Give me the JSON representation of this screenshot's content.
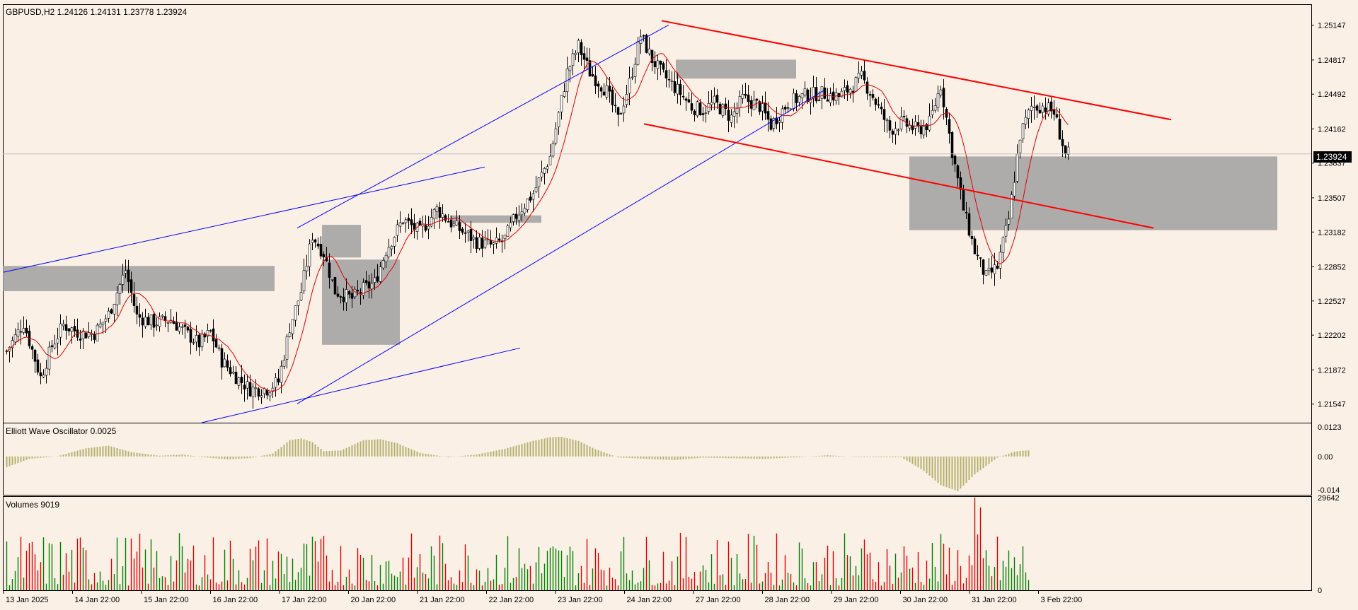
{
  "chart_data": [
    {
      "type": "candlestick",
      "title": "GBPUSD,H2  1.24126 1.24131 1.23778 1.23924",
      "symbol": "GBPUSD",
      "timeframe": "H2",
      "last_bar": {
        "open": 1.24126,
        "high": 1.24131,
        "low": 1.23778,
        "close": 1.23924
      },
      "current_price_label": "1.23924",
      "ylim": [
        1.2137,
        1.2534
      ],
      "y_ticks": [
        "1.25147",
        "1.24817",
        "1.24492",
        "1.24162",
        "1.23837",
        "1.23507",
        "1.23182",
        "1.22852",
        "1.22527",
        "1.22202",
        "1.21872",
        "1.21547"
      ],
      "x_ticks": [
        "13 Jan 2025",
        "14 Jan 22:00",
        "15 Jan 22:00",
        "16 Jan 22:00",
        "17 Jan 22:00",
        "20 Jan 22:00",
        "21 Jan 22:00",
        "22 Jan 22:00",
        "23 Jan 22:00",
        "24 Jan 22:00",
        "27 Jan 22:00",
        "28 Jan 22:00",
        "29 Jan 22:00",
        "30 Jan 22:00",
        "31 Jan 22:00",
        "3 Feb 22:00"
      ],
      "close_path": [
        [
          0,
          1.2205
        ],
        [
          6,
          1.2232
        ],
        [
          12,
          1.218
        ],
        [
          16,
          1.221
        ],
        [
          20,
          1.223
        ],
        [
          26,
          1.2222
        ],
        [
          31,
          1.2222
        ],
        [
          36,
          1.224
        ],
        [
          42,
          1.2282
        ],
        [
          46,
          1.2238
        ],
        [
          52,
          1.2232
        ],
        [
          58,
          1.2235
        ],
        [
          62,
          1.2225
        ],
        [
          68,
          1.2212
        ],
        [
          72,
          1.2223
        ],
        [
          76,
          1.2196
        ],
        [
          82,
          1.2178
        ],
        [
          86,
          1.2169
        ],
        [
          92,
          1.2169
        ],
        [
          96,
          1.2176
        ],
        [
          100,
          1.2228
        ],
        [
          104,
          1.2262
        ],
        [
          108,
          1.2315
        ],
        [
          112,
          1.2298
        ],
        [
          116,
          1.2262
        ],
        [
          122,
          1.2255
        ],
        [
          126,
          1.2264
        ],
        [
          130,
          1.227
        ],
        [
          134,
          1.2301
        ],
        [
          140,
          1.233
        ],
        [
          146,
          1.2318
        ],
        [
          152,
          1.234
        ],
        [
          158,
          1.2324
        ],
        [
          162,
          1.2317
        ],
        [
          166,
          1.2309
        ],
        [
          172,
          1.2305
        ],
        [
          176,
          1.2312
        ],
        [
          180,
          1.2334
        ],
        [
          186,
          1.2355
        ],
        [
          192,
          1.239
        ],
        [
          198,
          1.247
        ],
        [
          202,
          1.2495
        ],
        [
          206,
          1.247
        ],
        [
          212,
          1.2452
        ],
        [
          216,
          1.2425
        ],
        [
          220,
          1.246
        ],
        [
          224,
          1.2505
        ],
        [
          228,
          1.2482
        ],
        [
          232,
          1.2467
        ],
        [
          238,
          1.245
        ],
        [
          242,
          1.2437
        ],
        [
          246,
          1.2434
        ],
        [
          250,
          1.2441
        ],
        [
          256,
          1.2427
        ],
        [
          260,
          1.2445
        ],
        [
          266,
          1.2438
        ],
        [
          270,
          1.242
        ],
        [
          276,
          1.2441
        ],
        [
          282,
          1.2448
        ],
        [
          288,
          1.245
        ],
        [
          294,
          1.2447
        ],
        [
          298,
          1.2455
        ],
        [
          302,
          1.2465
        ],
        [
          306,
          1.2447
        ],
        [
          312,
          1.2415
        ],
        [
          316,
          1.2422
        ],
        [
          322,
          1.2415
        ],
        [
          326,
          1.2422
        ],
        [
          330,
          1.2458
        ],
        [
          334,
          1.2395
        ],
        [
          338,
          1.234
        ],
        [
          342,
          1.23
        ],
        [
          346,
          1.2275
        ],
        [
          350,
          1.2285
        ],
        [
          354,
          1.233
        ],
        [
          358,
          1.241
        ],
        [
          362,
          1.2437
        ],
        [
          366,
          1.2438
        ],
        [
          370,
          1.2432
        ],
        [
          374,
          1.2392
        ]
      ],
      "overlays": {
        "moving_average": {
          "color": "#e00000"
        },
        "trendlines_color": "#0000ff",
        "channel_color": "#ff0000",
        "zones_color": "#a0a0a0"
      }
    },
    {
      "type": "bar",
      "title": "Elliott Wave Oscillator 0.0025",
      "ylim": [
        -0.016,
        0.0135
      ],
      "y_ticks": [
        "0.0123",
        "0.00",
        "-0.014"
      ],
      "color": "#b5b06e",
      "envelope": [
        [
          0,
          -0.0045
        ],
        [
          8,
          -0.001
        ],
        [
          18,
          0.0001
        ],
        [
          28,
          0.0034
        ],
        [
          36,
          0.0045
        ],
        [
          44,
          0.0018
        ],
        [
          54,
          0.0003
        ],
        [
          62,
          0.0008
        ],
        [
          70,
          -0.0004
        ],
        [
          78,
          -0.0012
        ],
        [
          86,
          -0.0007
        ],
        [
          94,
          0.0012
        ],
        [
          100,
          0.0068
        ],
        [
          104,
          0.0075
        ],
        [
          108,
          0.006
        ],
        [
          112,
          0.0022
        ],
        [
          118,
          0.0025
        ],
        [
          126,
          0.0068
        ],
        [
          132,
          0.0072
        ],
        [
          138,
          0.0055
        ],
        [
          146,
          0.0015
        ],
        [
          156,
          -0.0003
        ],
        [
          166,
          0.0008
        ],
        [
          176,
          0.0032
        ],
        [
          186,
          0.0065
        ],
        [
          192,
          0.008
        ],
        [
          196,
          0.0082
        ],
        [
          202,
          0.0065
        ],
        [
          208,
          0.003
        ],
        [
          216,
          -0.0004
        ],
        [
          226,
          -0.001
        ],
        [
          236,
          -0.0015
        ],
        [
          246,
          -0.0005
        ],
        [
          258,
          -0.0008
        ],
        [
          268,
          -0.001
        ],
        [
          280,
          -0.0003
        ],
        [
          290,
          0.0005
        ],
        [
          300,
          -0.0002
        ],
        [
          316,
          -0.0003
        ],
        [
          324,
          -0.006
        ],
        [
          330,
          -0.012
        ],
        [
          336,
          -0.0145
        ],
        [
          342,
          -0.0075
        ],
        [
          350,
          -0.0005
        ],
        [
          356,
          0.002
        ],
        [
          360,
          0.0025
        ]
      ]
    },
    {
      "type": "bar",
      "title": "Volumes 9019",
      "y_ticks": [
        "29642",
        "0"
      ],
      "ymax": 29642,
      "up_color": "#008000",
      "down_color": "#e00000"
    }
  ],
  "price_axis_label": "1.23924"
}
